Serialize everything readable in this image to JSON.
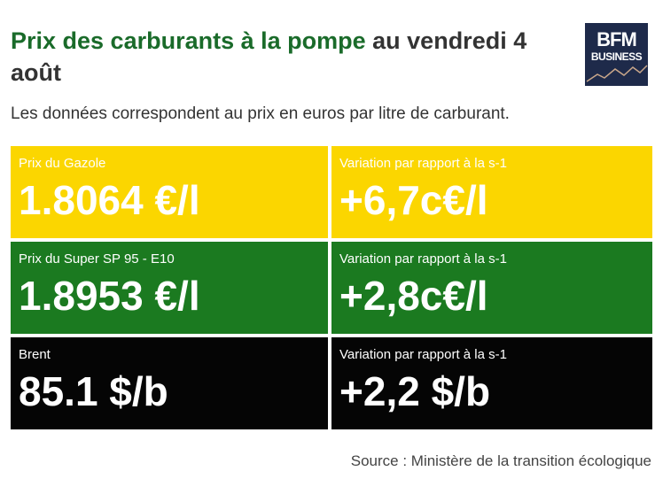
{
  "header": {
    "title_highlight": "Prix des carburants à la pompe",
    "title_rest": " au vendredi 4 août",
    "subtitle": "Les données correspondent au prix en euros par litre de carburant."
  },
  "logo": {
    "line1": "BFM",
    "line2": "BUSINESS"
  },
  "rows": [
    {
      "label": "Prix du Gazole",
      "value": "1.8064 €/l",
      "var_label": "Variation par rapport à la s-1",
      "var_value": "+6,7c€/l",
      "color": "#fbd600"
    },
    {
      "label": "Prix du Super SP 95 - E10",
      "value": "1.8953 €/l",
      "var_label": "Variation par rapport à la s-1",
      "var_value": "+2,8c€/l",
      "color": "#1b7a20"
    },
    {
      "label": "Brent",
      "value": "85.1 $/b",
      "var_label": "Variation par rapport à la s-1",
      "var_value": "+2,2 $/b",
      "color": "#050505"
    }
  ],
  "source": "Source : Ministère de la transition écologique"
}
